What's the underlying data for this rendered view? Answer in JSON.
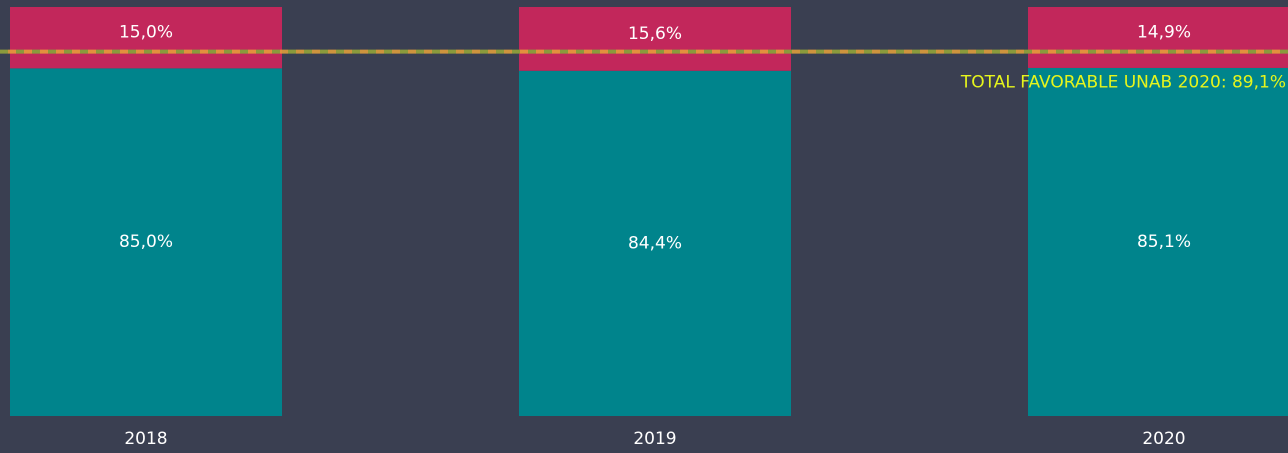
{
  "chart_data": {
    "type": "stacked_bar",
    "categories": [
      "2018",
      "2019",
      "2020"
    ],
    "series": [
      {
        "color": "#00848c",
        "values": [
          85.0,
          84.4,
          85.1
        ],
        "value_labels": [
          "85,0%",
          "84,4%",
          "85,1%"
        ]
      },
      {
        "color": "#c2275b",
        "values": [
          15.0,
          15.6,
          14.9
        ],
        "value_labels": [
          "15,0%",
          "15,6%",
          "14,9%"
        ]
      }
    ],
    "ylim": [
      0,
      100
    ],
    "reference_line": {
      "value": 89.1,
      "label": "TOTAL FAVORABLE UNAB 2020: 89,1%",
      "colors": [
        "#8a9a3c",
        "#e8a33a"
      ],
      "label_color": "#e6f51c"
    }
  }
}
